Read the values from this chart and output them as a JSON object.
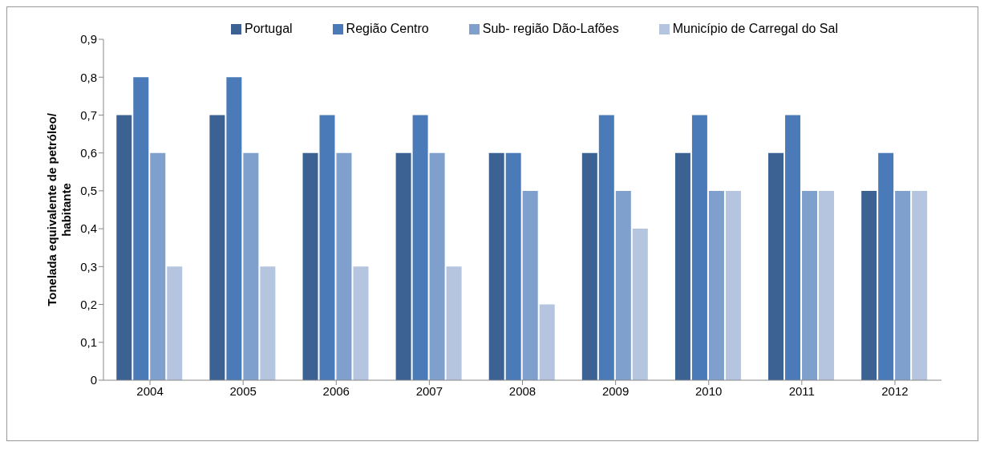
{
  "chart_data": {
    "type": "bar",
    "ylabel": "Tonelada equivalente de petróleo/ habitante",
    "categories": [
      "2004",
      "2005",
      "2006",
      "2007",
      "2008",
      "2009",
      "2010",
      "2011",
      "2012"
    ],
    "series": [
      {
        "name": "Portugal",
        "color": "#3b6292",
        "values": [
          0.7,
          0.7,
          0.6,
          0.6,
          0.6,
          0.6,
          0.6,
          0.6,
          0.5
        ]
      },
      {
        "name": "Região Centro",
        "color": "#4a7ab7",
        "values": [
          0.8,
          0.8,
          0.7,
          0.7,
          0.6,
          0.7,
          0.7,
          0.7,
          0.6
        ]
      },
      {
        "name": "Sub- região Dão-Lafões",
        "color": "#7f9fcc",
        "values": [
          0.6,
          0.6,
          0.6,
          0.6,
          0.5,
          0.5,
          0.5,
          0.5,
          0.5
        ]
      },
      {
        "name": "Município de Carregal do Sal",
        "color": "#b5c4df",
        "values": [
          0.3,
          0.3,
          0.3,
          0.3,
          0.2,
          0.4,
          0.5,
          0.5,
          0.5
        ]
      }
    ],
    "ylim": [
      0,
      0.9
    ],
    "yticks": [
      0,
      {
        "value": 0.1,
        "label": "0,1"
      },
      {
        "value": 0.2,
        "label": "0,2"
      },
      {
        "value": 0.3,
        "label": "0,3"
      },
      {
        "value": 0.4,
        "label": "0,4"
      },
      {
        "value": 0.5,
        "label": "0,5"
      },
      {
        "value": 0.6,
        "label": "0,6"
      },
      {
        "value": 0.7,
        "label": "0,7"
      },
      {
        "value": 0.8,
        "label": "0,8"
      },
      {
        "value": 0.9,
        "label": "0,9"
      }
    ],
    "grid": false,
    "legend": "top"
  }
}
